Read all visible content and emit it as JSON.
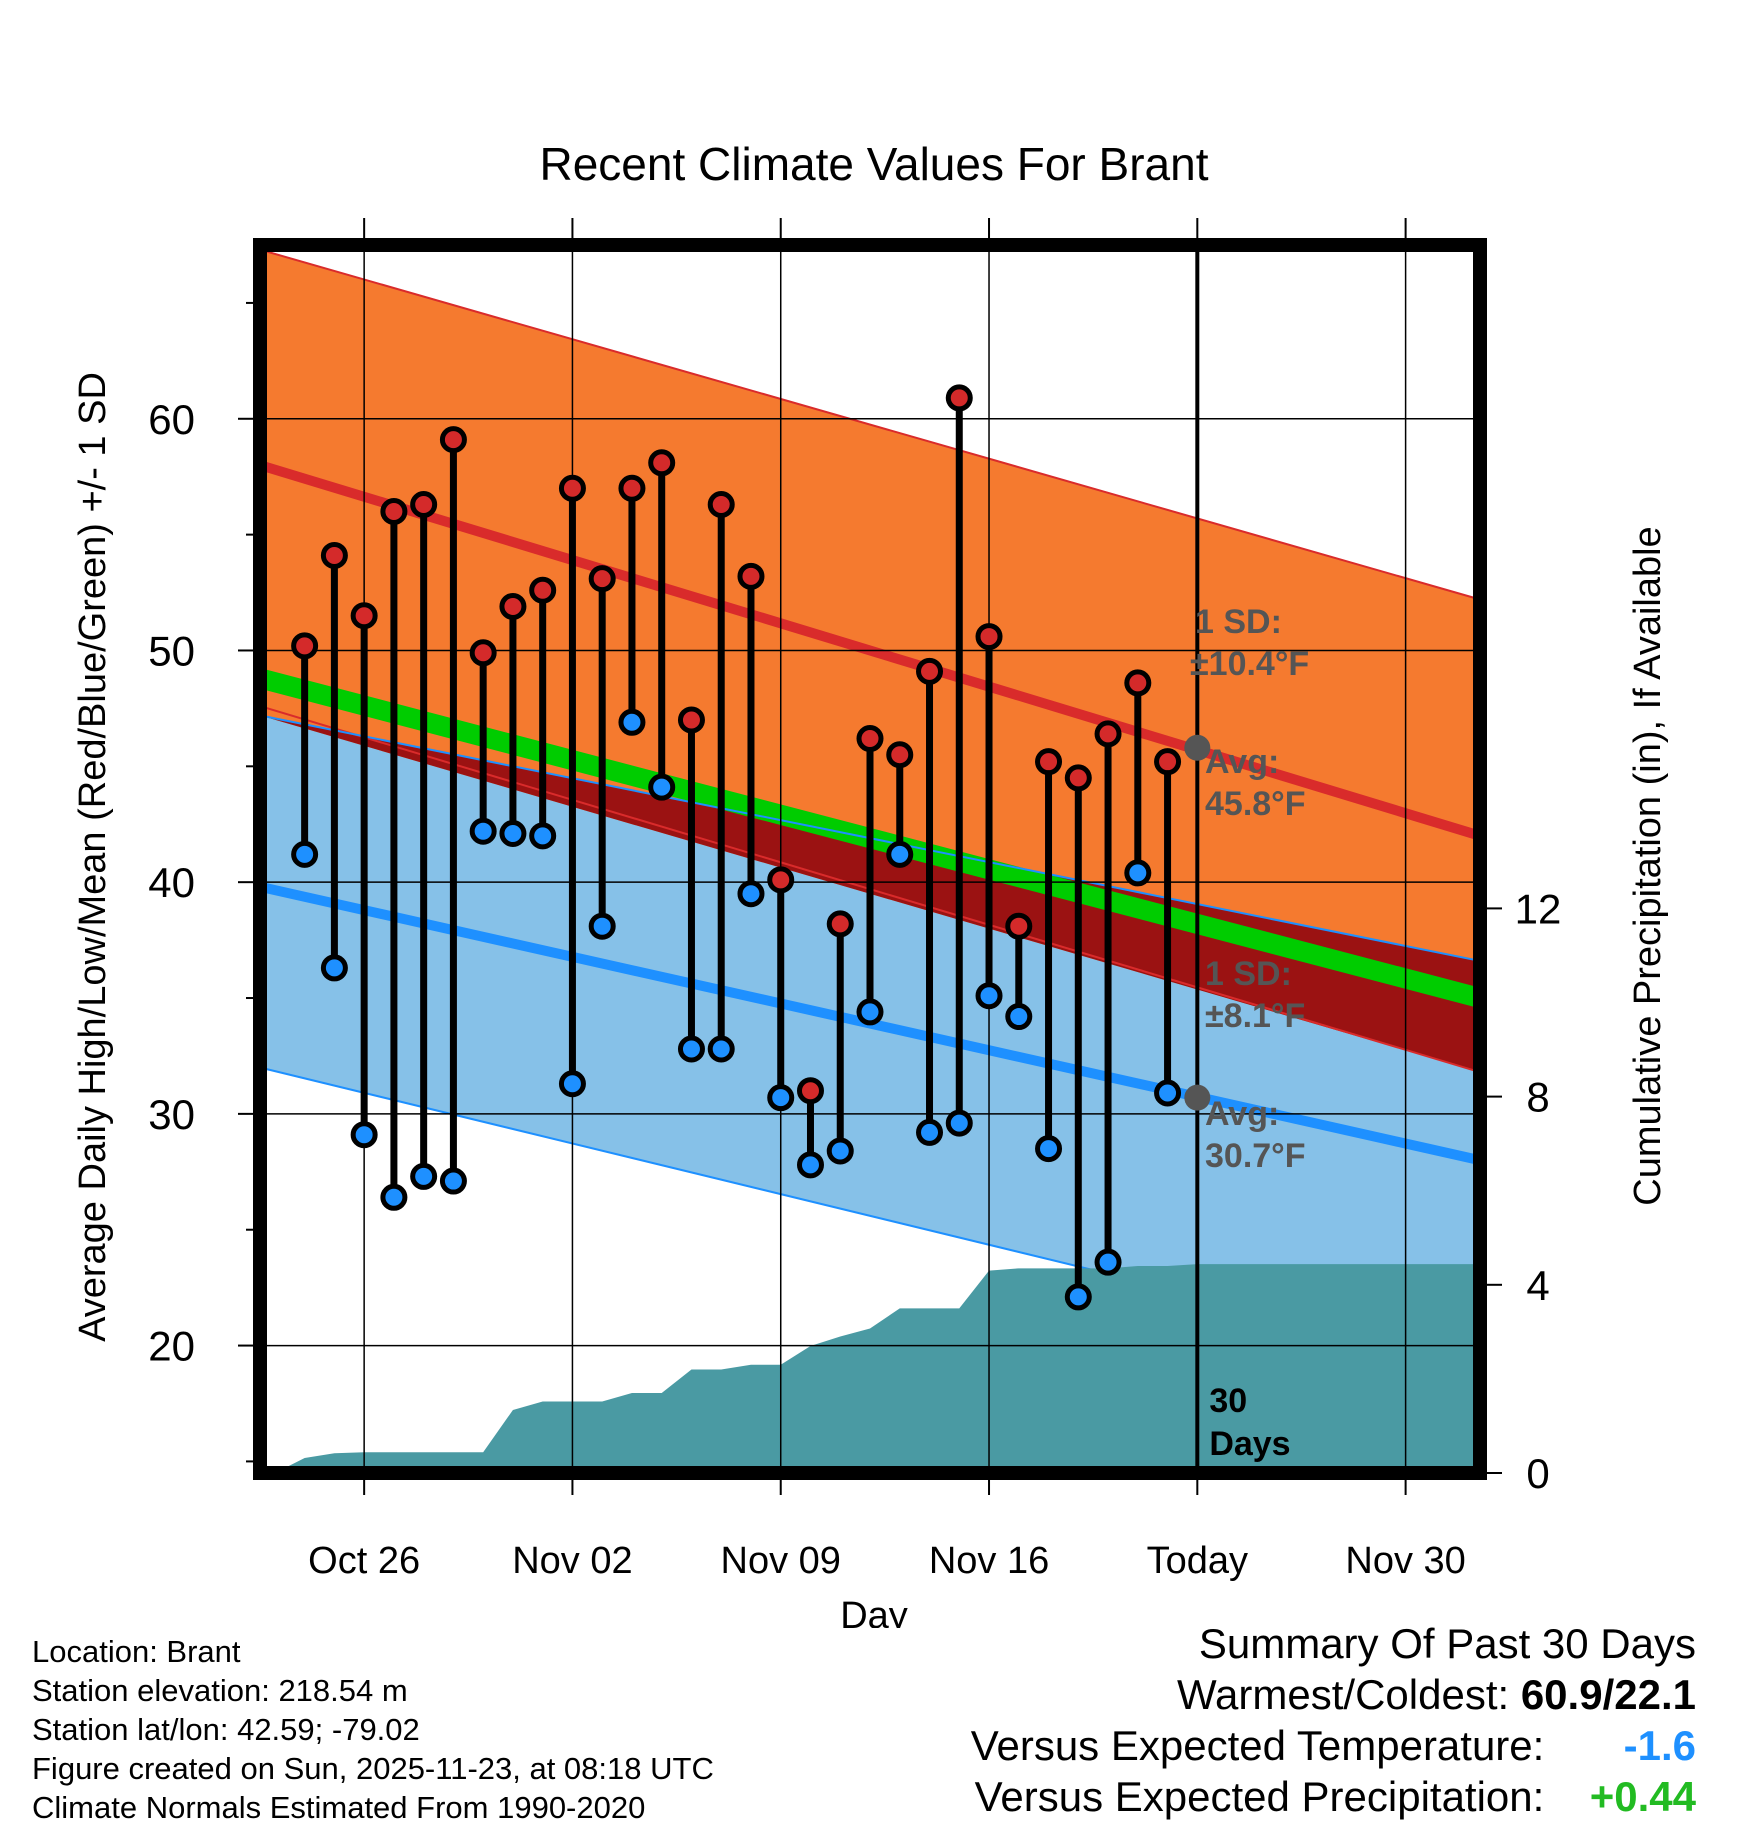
{
  "chart_data": {
    "type": "line",
    "title": "Recent Climate Values For Brant",
    "xlabel": "Day",
    "ylabel": "Average Daily High/Low/Mean (Red/Blue/Green) +/- 1 SD",
    "y2label": "Cumulative Precipitation (in), If Available",
    "xlim": [
      -3.5,
      37.5
    ],
    "ylim": [
      14.5,
      67.5
    ],
    "y2lim": [
      0,
      26.1
    ],
    "xticks": [
      {
        "x": 0,
        "label": "Oct 26"
      },
      {
        "x": 7,
        "label": "Nov 02"
      },
      {
        "x": 14,
        "label": "Nov 09"
      },
      {
        "x": 21,
        "label": "Nov 16"
      },
      {
        "x": 28,
        "label": "Today"
      },
      {
        "x": 35,
        "label": "Nov 30"
      }
    ],
    "yticks": [
      20,
      30,
      40,
      50,
      60
    ],
    "y2ticks": [
      0,
      4,
      8,
      12
    ],
    "today_x": 28,
    "today_label": "30 Days",
    "normals": {
      "x": [
        -3.5,
        37.5
      ],
      "high_mean": [
        58.0,
        42.0
      ],
      "high_upper": [
        67.3,
        52.2
      ],
      "high_lower": [
        47.6,
        31.8
      ],
      "low_mean": [
        39.8,
        28.0
      ],
      "low_upper": [
        47.2,
        36.6
      ],
      "low_lower": [
        32.0,
        19.2
      ],
      "mean": [
        48.8,
        35.0
      ]
    },
    "annotations": {
      "high_sd": "1 SD:",
      "high_sd_val": "±10.4°F",
      "high_avg": "Avg:",
      "high_avg_val": "45.8°F",
      "low_sd": "1 SD:",
      "low_sd_val": "±8.1°F",
      "low_avg": "Avg:",
      "low_avg_val": "30.7°F",
      "high_avg_point": 45.8,
      "low_avg_point": 30.7
    },
    "series": [
      {
        "name": "Daily High",
        "x": [
          -2,
          -1,
          0,
          1,
          2,
          3,
          4,
          5,
          6,
          7,
          8,
          9,
          10,
          11,
          12,
          13,
          14,
          15,
          16,
          17,
          18,
          19,
          20,
          21,
          22,
          23,
          24,
          25,
          26,
          27
        ],
        "values": [
          50.2,
          54.1,
          51.5,
          56.0,
          56.3,
          59.1,
          49.9,
          51.9,
          52.6,
          57.0,
          53.1,
          57.0,
          58.1,
          47.0,
          56.3,
          53.2,
          40.1,
          31.0,
          38.2,
          46.2,
          45.5,
          49.1,
          60.9,
          50.6,
          38.1,
          45.2,
          44.5,
          46.4,
          48.6,
          45.2
        ]
      },
      {
        "name": "Daily Low",
        "x": [
          -2,
          -1,
          0,
          1,
          2,
          3,
          4,
          5,
          6,
          7,
          8,
          9,
          10,
          11,
          12,
          13,
          14,
          15,
          16,
          17,
          18,
          19,
          20,
          21,
          22,
          23,
          24,
          25,
          26,
          27
        ],
        "values": [
          41.2,
          36.3,
          29.1,
          26.4,
          27.3,
          27.1,
          42.2,
          42.1,
          42.0,
          31.3,
          38.1,
          46.9,
          44.1,
          32.8,
          32.8,
          39.5,
          30.7,
          27.8,
          28.4,
          34.4,
          41.2,
          29.2,
          29.6,
          35.1,
          34.2,
          28.5,
          22.1,
          23.6,
          40.4,
          30.9
        ]
      },
      {
        "name": "Cumulative Precipitation",
        "x": [
          -3,
          -2,
          -1,
          0,
          1,
          2,
          3,
          4,
          5,
          6,
          7,
          8,
          9,
          10,
          11,
          12,
          13,
          14,
          15,
          16,
          17,
          18,
          19,
          20,
          21,
          22,
          23,
          24,
          25,
          26,
          27,
          28,
          37.5
        ],
        "values": [
          0.0,
          0.32,
          0.42,
          0.44,
          0.44,
          0.44,
          0.44,
          0.44,
          1.34,
          1.52,
          1.52,
          1.52,
          1.7,
          1.7,
          2.2,
          2.2,
          2.3,
          2.3,
          2.7,
          2.9,
          3.07,
          3.5,
          3.5,
          3.5,
          4.3,
          4.35,
          4.35,
          4.35,
          4.35,
          4.4,
          4.4,
          4.44,
          4.44
        ]
      }
    ],
    "colors": {
      "high_band": "#f57a2f",
      "high_line": "#d92b2b",
      "low_band": "#86c1e8",
      "low_line": "#1e90ff",
      "overlap": "#9b1212",
      "mean_band": "#00cc00",
      "precip": "#4a9aa3",
      "high_dot": "#d42a2a",
      "low_dot": "#1e90ff",
      "annotation": "#555555"
    }
  },
  "info": {
    "location": "Location: Brant",
    "elevation": "Station elevation: 218.54 m",
    "latlon": "Station lat/lon: 42.59; -79.02",
    "created": "Figure created on Sun, 2025-11-23, at 08:18 UTC",
    "normals": "Climate Normals Estimated From 1990-2020"
  },
  "summary": {
    "title": "Summary Of Past 30 Days",
    "warm_label": "Warmest/Coldest:",
    "warm_value": "60.9/22.1",
    "temp_label": "Versus Expected Temperature:",
    "temp_value": "-1.6",
    "temp_color": "#1e90ff",
    "precip_label": "Versus Expected Precipitation:",
    "precip_value": "+0.44",
    "precip_color": "#22bb22"
  }
}
